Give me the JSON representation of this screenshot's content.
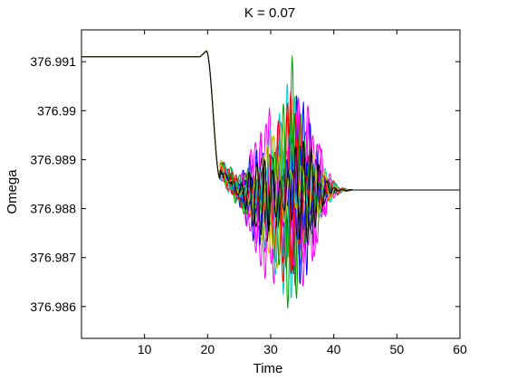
{
  "chart_data": {
    "type": "line",
    "title": "K = 0.07",
    "xlabel": "Time",
    "ylabel": "Omega",
    "xlim": [
      0,
      60
    ],
    "ylim": [
      376.98535,
      376.99165
    ],
    "x_ticks": [
      10,
      20,
      30,
      40,
      50,
      60
    ],
    "y_ticks": [
      376.986,
      376.987,
      376.988,
      376.989,
      376.99,
      376.991
    ],
    "x_tick_labels": [
      "10",
      "20",
      "30",
      "40",
      "50",
      "60"
    ],
    "y_tick_labels": [
      "376.986",
      "376.987",
      "376.988",
      "376.989",
      "376.99",
      "376.991"
    ],
    "grid": false,
    "legend": "none",
    "series_colors": [
      "#ff00ff",
      "#0000ff",
      "#00a000",
      "#ff0000",
      "#00c8c8",
      "#c8c800",
      "#000000"
    ],
    "baseline_value_start": 376.9911,
    "peak_value": 376.99122,
    "settled_value": 376.98838,
    "disturbance_start_time": 18.8,
    "settled_time": 43,
    "oscillation_envelope": {
      "time": [
        22,
        25,
        28,
        30,
        32,
        33.5,
        35,
        37,
        39,
        41,
        43
      ],
      "upper": [
        376.9891,
        376.98875,
        376.9895,
        376.9902,
        376.99075,
        376.99155,
        376.9905,
        376.98965,
        376.98885,
        376.98845,
        376.98838
      ],
      "lower": [
        376.9885,
        376.98795,
        376.98695,
        376.98625,
        376.98575,
        376.98535,
        376.98615,
        376.98705,
        376.98795,
        376.9883,
        376.98838
      ]
    }
  }
}
